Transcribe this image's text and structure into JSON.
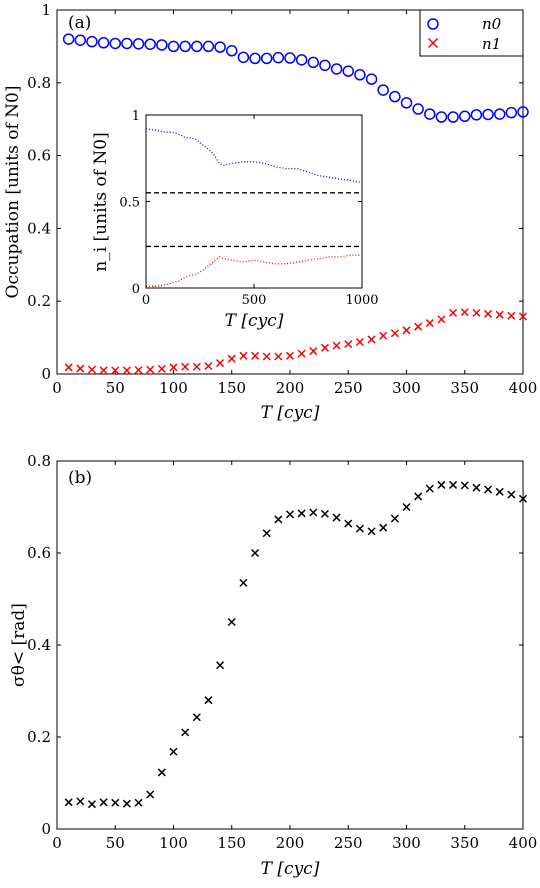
{
  "colors": {
    "n0": "#0000ff",
    "n1": "#ff0000",
    "sigma": "#000000",
    "threshold": "#000000"
  },
  "chart_data": [
    {
      "type": "scatter",
      "panel_label": "(a)",
      "xlabel": "T [cyc]",
      "ylabel": "Occupation [units of N0]",
      "xlim": [
        0,
        400
      ],
      "ylim": [
        0,
        1
      ],
      "xticks": [
        "0",
        "50",
        "100",
        "150",
        "200",
        "250",
        "300",
        "350",
        "400"
      ],
      "yticks": [
        "0",
        "0.2",
        "0.4",
        "0.6",
        "0.8",
        "1"
      ],
      "legend_placement": "top-right",
      "series": [
        {
          "name": "n0",
          "marker": "circle",
          "x": [
            10,
            20,
            30,
            40,
            50,
            60,
            70,
            80,
            90,
            100,
            110,
            120,
            130,
            140,
            150,
            160,
            170,
            180,
            190,
            200,
            210,
            220,
            230,
            240,
            250,
            260,
            270,
            280,
            290,
            300,
            310,
            320,
            330,
            340,
            350,
            360,
            370,
            380,
            390,
            400
          ],
          "y": [
            0.92,
            0.917,
            0.913,
            0.91,
            0.908,
            0.908,
            0.907,
            0.906,
            0.904,
            0.9,
            0.9,
            0.9,
            0.9,
            0.898,
            0.888,
            0.87,
            0.867,
            0.867,
            0.869,
            0.868,
            0.863,
            0.856,
            0.848,
            0.838,
            0.832,
            0.822,
            0.81,
            0.78,
            0.762,
            0.745,
            0.728,
            0.714,
            0.706,
            0.706,
            0.708,
            0.712,
            0.713,
            0.714,
            0.718,
            0.72
          ]
        },
        {
          "name": "n1",
          "marker": "x",
          "x": [
            10,
            20,
            30,
            40,
            50,
            60,
            70,
            80,
            90,
            100,
            110,
            120,
            130,
            140,
            150,
            160,
            170,
            180,
            190,
            200,
            210,
            220,
            230,
            240,
            250,
            260,
            270,
            280,
            290,
            300,
            310,
            320,
            330,
            340,
            350,
            360,
            370,
            380,
            390,
            400
          ],
          "y": [
            0.018,
            0.015,
            0.012,
            0.01,
            0.01,
            0.01,
            0.011,
            0.012,
            0.014,
            0.018,
            0.02,
            0.02,
            0.022,
            0.03,
            0.042,
            0.05,
            0.05,
            0.048,
            0.048,
            0.05,
            0.056,
            0.063,
            0.072,
            0.078,
            0.082,
            0.088,
            0.095,
            0.105,
            0.112,
            0.12,
            0.13,
            0.14,
            0.15,
            0.168,
            0.17,
            0.168,
            0.165,
            0.163,
            0.16,
            0.158
          ]
        }
      ],
      "inset": {
        "type": "line",
        "xlabel": "T [cyc]",
        "ylabel": "n_i [units of N0]",
        "xlim": [
          0,
          1000
        ],
        "ylim": [
          0,
          1
        ],
        "xticks": [
          "0",
          "500",
          "1000"
        ],
        "yticks": [
          "0",
          "0.5",
          "1"
        ],
        "threshold_lines": [
          0.55,
          0.24
        ],
        "series": [
          {
            "name": "n0",
            "x": [
              0,
              50,
              100,
              120,
              150,
              180,
              200,
              230,
              260,
              280,
              300,
              320,
              340,
              360,
              400,
              450,
              500,
              550,
              600,
              650,
              700,
              750,
              800,
              850,
              900,
              950,
              1000
            ],
            "y": [
              0.92,
              0.91,
              0.9,
              0.9,
              0.89,
              0.87,
              0.87,
              0.86,
              0.83,
              0.81,
              0.79,
              0.76,
              0.72,
              0.71,
              0.72,
              0.73,
              0.73,
              0.72,
              0.7,
              0.69,
              0.69,
              0.67,
              0.65,
              0.64,
              0.63,
              0.62,
              0.61
            ]
          },
          {
            "name": "n1",
            "x": [
              0,
              50,
              100,
              120,
              150,
              180,
              200,
              230,
              260,
              280,
              300,
              320,
              340,
              360,
              400,
              450,
              500,
              550,
              600,
              650,
              700,
              750,
              800,
              850,
              900,
              950,
              1000
            ],
            "y": [
              0.01,
              0.01,
              0.02,
              0.03,
              0.04,
              0.06,
              0.07,
              0.08,
              0.1,
              0.12,
              0.14,
              0.16,
              0.18,
              0.17,
              0.16,
              0.15,
              0.16,
              0.15,
              0.14,
              0.14,
              0.15,
              0.16,
              0.17,
              0.18,
              0.18,
              0.19,
              0.19
            ]
          }
        ]
      }
    },
    {
      "type": "scatter",
      "panel_label": "(b)",
      "xlabel": "T [cyc]",
      "ylabel": "σθ< [rad]",
      "xlim": [
        0,
        400
      ],
      "ylim": [
        0,
        0.8
      ],
      "xticks": [
        "0",
        "50",
        "100",
        "150",
        "200",
        "250",
        "300",
        "350",
        "400"
      ],
      "yticks": [
        "0",
        "0.2",
        "0.4",
        "0.6",
        "0.8"
      ],
      "series": [
        {
          "marker": "x",
          "x": [
            10,
            20,
            30,
            40,
            50,
            60,
            70,
            80,
            90,
            100,
            110,
            120,
            130,
            140,
            150,
            160,
            170,
            180,
            190,
            200,
            210,
            220,
            230,
            240,
            250,
            260,
            270,
            280,
            290,
            300,
            310,
            320,
            330,
            340,
            350,
            360,
            370,
            380,
            390,
            400
          ],
          "y": [
            0.058,
            0.06,
            0.054,
            0.058,
            0.057,
            0.055,
            0.057,
            0.075,
            0.123,
            0.168,
            0.21,
            0.243,
            0.28,
            0.356,
            0.45,
            0.535,
            0.6,
            0.643,
            0.673,
            0.684,
            0.686,
            0.688,
            0.685,
            0.677,
            0.664,
            0.653,
            0.647,
            0.655,
            0.675,
            0.7,
            0.723,
            0.74,
            0.748,
            0.748,
            0.747,
            0.742,
            0.738,
            0.733,
            0.727,
            0.718
          ]
        }
      ]
    }
  ]
}
